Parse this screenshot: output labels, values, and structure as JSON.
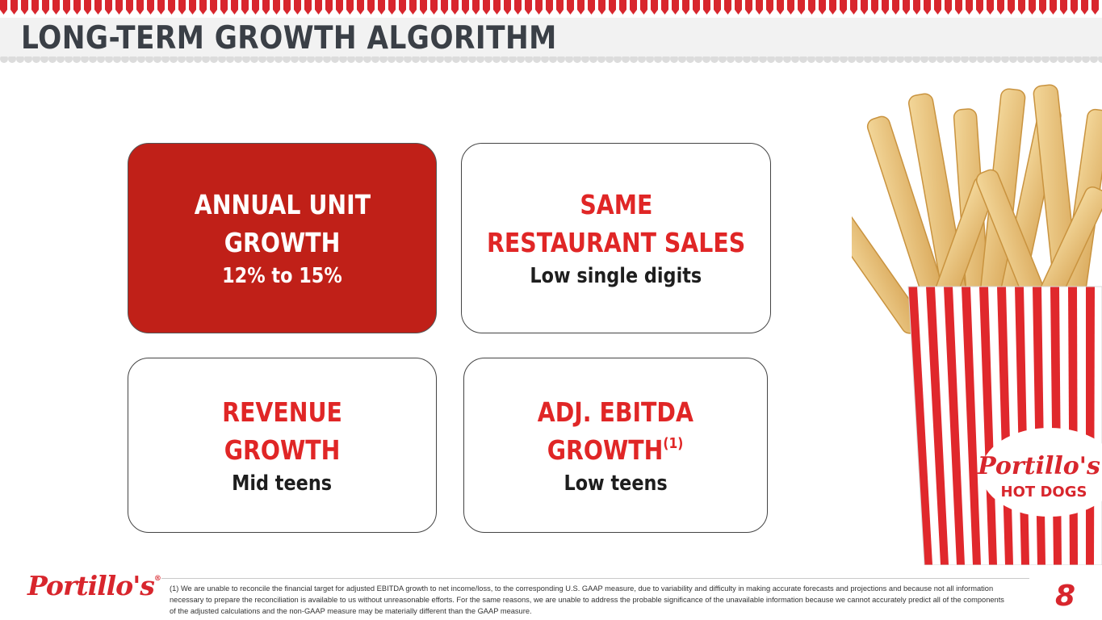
{
  "header": {
    "title": "LONG-TERM GROWTH ALGORITHM"
  },
  "cards": {
    "annual_unit_growth": {
      "line1": "ANNUAL UNIT",
      "line2": "GROWTH",
      "value": "12% to 15%"
    },
    "same_restaurant_sales": {
      "line1": "SAME",
      "line2": "RESTAURANT SALES",
      "value": "Low single digits"
    },
    "revenue_growth": {
      "line1": "REVENUE",
      "line2": "GROWTH",
      "value": "Mid teens"
    },
    "adj_ebitda_growth": {
      "line1": "ADJ. EBITDA",
      "line2": "GROWTH",
      "footnote_mark": "(1)",
      "value": "Low teens"
    }
  },
  "image": {
    "carton_brand": "Portillo's",
    "carton_sub": "HOT DOGS"
  },
  "footer": {
    "logo": "Portillo's",
    "logo_mark": "®",
    "footnote": "(1) We are unable to reconcile the financial target for adjusted EBITDA growth to net income/loss, to the corresponding U.S. GAAP measure, due to variability and difficulty in making accurate forecasts and projections and because not all information necessary to prepare the reconciliation is available to us without unreasonable efforts. For the same reasons, we are unable to address the probable significance of the unavailable information because we cannot accurately predict all of the components of the adjusted calculations and the non-GAAP measure may be materially different than the GAAP measure.",
    "page_number": "8"
  },
  "colors": {
    "brand_red": "#d8262d",
    "card_highlight": "#c02018",
    "title_gray": "#3a3f46"
  }
}
